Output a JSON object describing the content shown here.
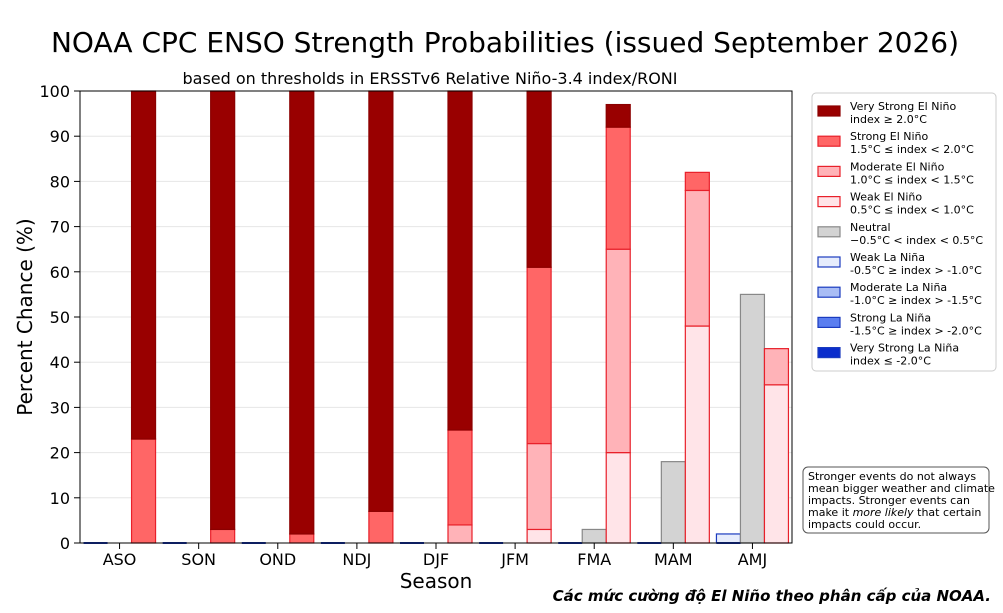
{
  "chart_data": {
    "type": "bar",
    "title": "NOAA CPC ENSO Strength Probabilities (issued September 2026)",
    "subtitle": "based on thresholds in ERSSTv6 Relative Niño-3.4 index/RONI",
    "xlabel": "Season",
    "ylabel": "Percent Chance (%)",
    "ylim": [
      0,
      100
    ],
    "yticks": [
      0,
      10,
      20,
      30,
      40,
      50,
      60,
      70,
      80,
      90,
      100
    ],
    "grid": true,
    "legend_position": "right",
    "categories": [
      "ASO",
      "SON",
      "OND",
      "NDJ",
      "DJF",
      "JFM",
      "FMA",
      "MAM",
      "AMJ"
    ],
    "la_nina_series": [
      {
        "name": "Very Strong La Niña",
        "range": "index ≤ -2.0°C",
        "color": "#0a2dcc",
        "values": [
          0,
          0,
          0,
          0,
          0,
          0,
          0,
          0,
          0
        ]
      },
      {
        "name": "Strong La Niña",
        "range": "-1.5°C ≥ index > -2.0°C",
        "color": "#5a7ef0",
        "values": [
          0,
          0,
          0,
          0,
          0,
          0,
          0,
          0,
          0
        ]
      },
      {
        "name": "Moderate La Niña",
        "range": "-1.0°C ≥ index > -1.5°C",
        "color": "#a9bdf5",
        "values": [
          0,
          0,
          0,
          0,
          0,
          0,
          0,
          0,
          0
        ]
      },
      {
        "name": "Weak La Niña",
        "range": "-0.5°C ≥ index > -1.0°C",
        "color": "#e6ecfc",
        "values": [
          0,
          0,
          0,
          0,
          0,
          0,
          0,
          0,
          2
        ]
      }
    ],
    "neutral_series": {
      "name": "Neutral",
      "range": "−0.5°C < index < 0.5°C",
      "color": "#d3d3d3",
      "values": [
        0,
        0,
        0,
        0,
        0,
        0,
        3,
        18,
        55
      ]
    },
    "el_nino_series": [
      {
        "name": "Weak El Niño",
        "range": "0.5°C ≤ index < 1.0°C",
        "color": "#ffe4e8",
        "values": [
          0,
          0,
          0,
          0,
          0,
          3,
          20,
          48,
          35
        ]
      },
      {
        "name": "Moderate El Niño",
        "range": "1.0°C ≤ index < 1.5°C",
        "color": "#ffb3b8",
        "values": [
          0,
          0,
          0,
          0,
          4,
          19,
          45,
          30,
          8
        ]
      },
      {
        "name": "Strong El Niño",
        "range": "1.5°C ≤ index < 2.0°C",
        "color": "#ff6666",
        "values": [
          23,
          3,
          2,
          7,
          21,
          39,
          27,
          4,
          0
        ]
      },
      {
        "name": "Very Strong El Niño",
        "range": "index ≥ 2.0°C",
        "color": "#990000",
        "values": [
          77,
          97,
          98,
          93,
          75,
          39,
          5,
          0,
          0
        ]
      }
    ],
    "legend_order": [
      "Very Strong El Niño",
      "Strong El Niño",
      "Moderate El Niño",
      "Weak El Niño",
      "Neutral",
      "Weak La Niña",
      "Moderate La Niña",
      "Strong La Niña",
      "Very Strong La Niña"
    ],
    "note_lines": [
      "Stronger events do not always",
      "mean bigger weather and climate",
      "impacts. Stronger events can",
      "make it ",
      "more likely",
      " that certain",
      "impacts could occur."
    ],
    "colors": {
      "el_nino_edge": "#e8202a",
      "la_nina_edge": "#1a3bbf",
      "neutral_edge": "#888888",
      "very_strong_edge": "#8b0000"
    }
  },
  "caption": "Các mức cường độ El Niño theo phân cấp của NOAA."
}
